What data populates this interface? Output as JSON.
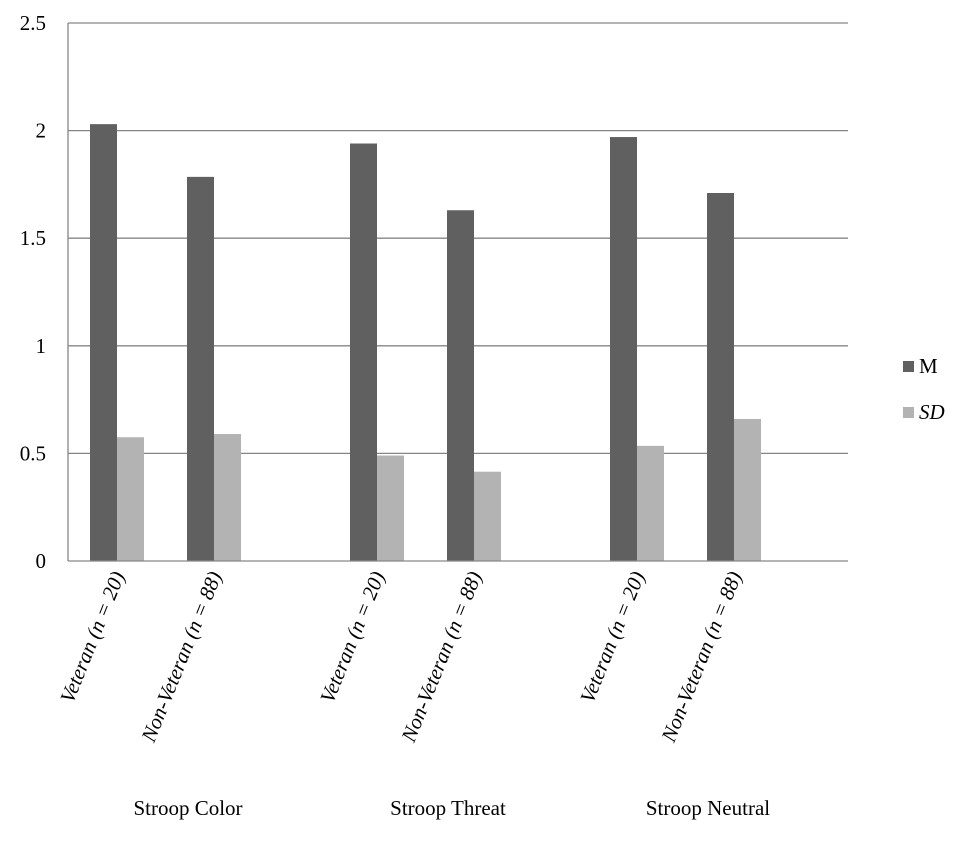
{
  "chart_data": {
    "type": "bar",
    "groups": [
      "Stroop Color",
      "Stroop Threat",
      "Stroop Neutral"
    ],
    "categories": [
      "Veteran (n = 20)",
      "Non-Veteran (n = 88)"
    ],
    "series": [
      {
        "name": "M",
        "color": "#606060",
        "values": [
          [
            2.03,
            1.785
          ],
          [
            1.94,
            1.63
          ],
          [
            1.97,
            1.71
          ]
        ]
      },
      {
        "name": "SD",
        "color": "#b3b3b3",
        "values": [
          [
            0.575,
            0.59
          ],
          [
            0.49,
            0.415
          ],
          [
            0.535,
            0.66
          ]
        ]
      }
    ],
    "ylim": [
      0,
      2.5
    ],
    "yticks": [
      "0",
      "0.5",
      "1",
      "1.5",
      "2",
      "2.5"
    ],
    "grid": true,
    "legend": "right"
  }
}
